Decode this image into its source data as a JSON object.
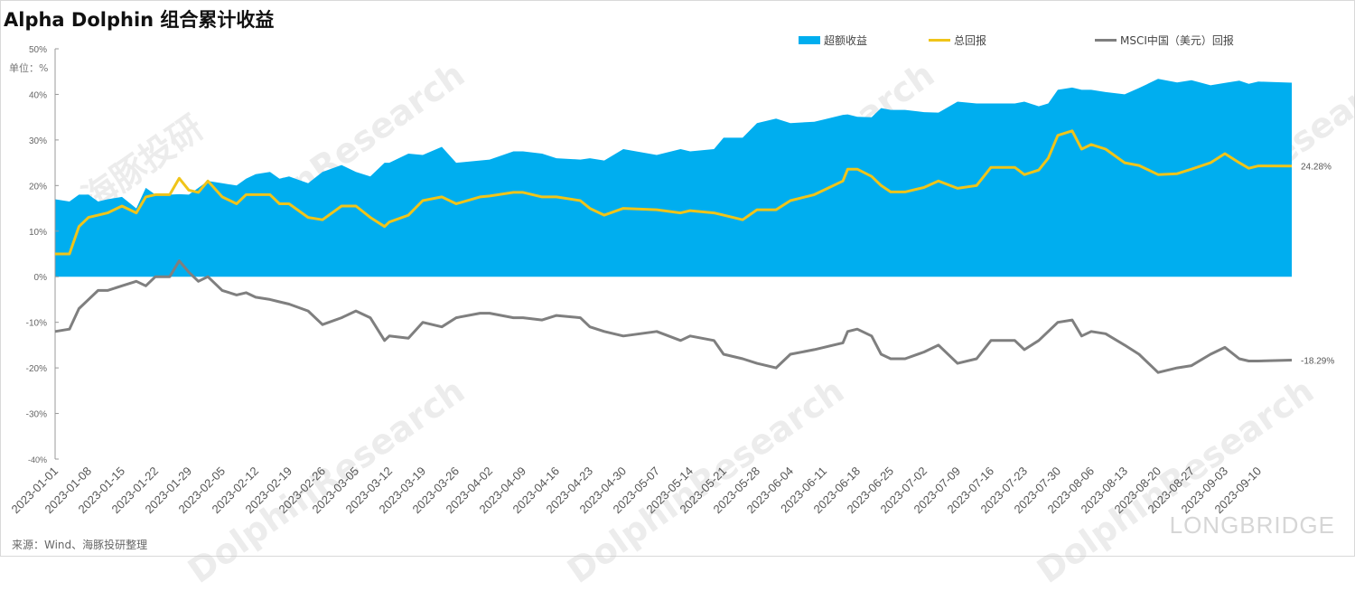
{
  "chart_data": {
    "type": "area",
    "title": "Alpha Dolphin 组合累计收益",
    "unit_label": "单位：%",
    "source": "来源：Wind、海豚投研整理",
    "watermarks": [
      "海豚投研",
      "DolphinResearch",
      "LONGBRIDGE"
    ],
    "ylim": [
      -40,
      50
    ],
    "yticks": [
      "50%",
      "40%",
      "30%",
      "20%",
      "10%",
      "0%",
      "-10%",
      "-20%",
      "-30%",
      "-40%"
    ],
    "ytick_values": [
      50,
      40,
      30,
      20,
      10,
      0,
      -10,
      -20,
      -30,
      -40
    ],
    "x_unit": "days since 2023-01-01",
    "xlim": [
      0,
      259
    ],
    "xticks": [
      "2023-01-01",
      "2023-01-08",
      "2023-01-15",
      "2023-01-22",
      "2023-01-29",
      "2023-02-05",
      "2023-02-12",
      "2023-02-19",
      "2023-02-26",
      "2023-03-05",
      "2023-03-12",
      "2023-03-19",
      "2023-03-26",
      "2023-04-02",
      "2023-04-09",
      "2023-04-16",
      "2023-04-23",
      "2023-04-30",
      "2023-05-07",
      "2023-05-14",
      "2023-05-21",
      "2023-05-28",
      "2023-06-04",
      "2023-06-11",
      "2023-06-18",
      "2023-06-25",
      "2023-07-02",
      "2023-07-09",
      "2023-07-16",
      "2023-07-23",
      "2023-07-30",
      "2023-08-06",
      "2023-08-13",
      "2023-08-20",
      "2023-08-27",
      "2023-09-03",
      "2023-09-10"
    ],
    "x": [
      0,
      3,
      5,
      7,
      9,
      11,
      14,
      17,
      19,
      21,
      24,
      26,
      28,
      30,
      32,
      35,
      38,
      40,
      42,
      45,
      47,
      49,
      53,
      56,
      60,
      63,
      66,
      69,
      70,
      74,
      77,
      81,
      84,
      89,
      91,
      96,
      98,
      102,
      105,
      110,
      112,
      115,
      119,
      126,
      131,
      133,
      138,
      140,
      144,
      147,
      151,
      154,
      159,
      161,
      165,
      166,
      168,
      171,
      173,
      175,
      178,
      182,
      185,
      189,
      193,
      196,
      201,
      203,
      206,
      208,
      210,
      213,
      215,
      217,
      220,
      224,
      227,
      231,
      235,
      238,
      242,
      245,
      248,
      250,
      252,
      259
    ],
    "series": [
      {
        "name": "超额收益",
        "kind": "area",
        "color": "#00aeef",
        "values": [
          17,
          16.5,
          18,
          18,
          16.5,
          17,
          17.5,
          15,
          19.5,
          18,
          18,
          18.1,
          18,
          19.5,
          21,
          20.5,
          20,
          21.5,
          22.5,
          23,
          21.5,
          22,
          20.5,
          23,
          24.5,
          23,
          22,
          25,
          25,
          27,
          26.7,
          28.5,
          25,
          25.5,
          25.7,
          27.5,
          27.5,
          27,
          26,
          25.7,
          26,
          25.5,
          28,
          26.7,
          28,
          27.5,
          28,
          30.5,
          30.5,
          33.7,
          34.7,
          33.7,
          34,
          34.5,
          35.5,
          35.6,
          35.1,
          35,
          37,
          36.6,
          36.6,
          36.1,
          36,
          38.4,
          38,
          38,
          38,
          38.4,
          37.4,
          38,
          41,
          41.5,
          41,
          41,
          40.5,
          40,
          41.4,
          43.4,
          42.6,
          43.1,
          42,
          42.5,
          43,
          42.3,
          42.8,
          42.57
        ]
      },
      {
        "name": "总回报",
        "kind": "line",
        "color": "#f0c419",
        "end_label": "24.28%",
        "values": [
          5,
          5,
          11,
          13,
          13.5,
          14,
          15.5,
          14,
          17.5,
          18,
          18,
          21.6,
          19,
          18.5,
          21,
          17.5,
          16,
          18,
          18,
          18,
          16,
          16,
          13,
          12.5,
          15.5,
          15.5,
          13,
          11,
          12,
          13.5,
          16.7,
          17.5,
          16,
          17.5,
          17.7,
          18.5,
          18.5,
          17.5,
          17.5,
          16.7,
          15,
          13.5,
          15,
          14.7,
          14,
          14.5,
          14,
          13.5,
          12.5,
          14.7,
          14.7,
          16.7,
          18,
          19,
          21,
          23.6,
          23.6,
          22,
          20,
          18.6,
          18.6,
          19.6,
          21,
          19.4,
          20,
          24,
          24,
          22.4,
          23.4,
          26,
          31,
          32,
          28,
          29,
          28,
          25,
          24.4,
          22.4,
          22.6,
          23.6,
          25,
          27,
          25,
          23.8,
          24.3,
          24.28
        ]
      },
      {
        "name": "MSCI中国（美元）回报",
        "kind": "line",
        "color": "#7f7f7f",
        "end_label": "-18.29%",
        "values": [
          -12,
          -11.5,
          -7,
          -5,
          -3,
          -3,
          -2,
          -1,
          -2,
          0,
          0,
          3.5,
          1,
          -1,
          0,
          -3,
          -4,
          -3.5,
          -4.5,
          -5,
          -5.5,
          -6,
          -7.5,
          -10.5,
          -9,
          -7.5,
          -9,
          -14,
          -13,
          -13.5,
          -10,
          -11,
          -9,
          -8,
          -8,
          -9,
          -9,
          -9.5,
          -8.5,
          -9,
          -11,
          -12,
          -13,
          -12,
          -14,
          -13,
          -14,
          -17,
          -18,
          -19,
          -20,
          -17,
          -16,
          -15.5,
          -14.5,
          -12,
          -11.5,
          -13,
          -17,
          -18,
          -18,
          -16.5,
          -15,
          -19,
          -18,
          -14,
          -14,
          -16,
          -14,
          -12,
          -10,
          -9.5,
          -13,
          -12,
          -12.5,
          -15,
          -17,
          -21,
          -20,
          -19.5,
          -17,
          -15.5,
          -18,
          -18.5,
          -18.5,
          -18.29
        ]
      }
    ],
    "legend_position": "top"
  }
}
